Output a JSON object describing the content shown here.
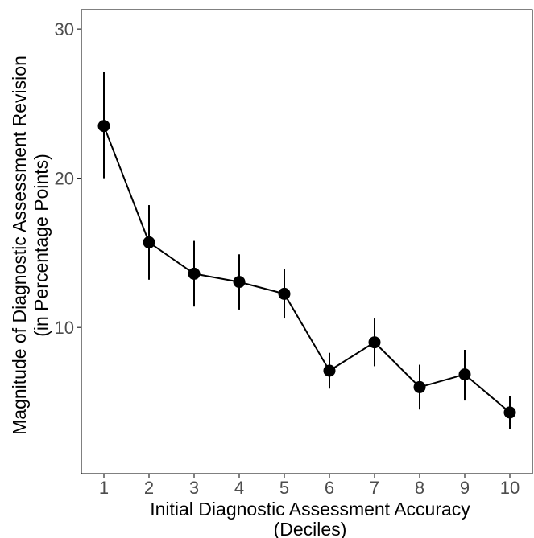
{
  "chart_data": {
    "type": "line",
    "title": "",
    "xlabel": [
      "Initial Diagnostic Assessment Accuracy",
      "(Deciles)"
    ],
    "ylabel": [
      "Magnitude of Diagnostic Assessment Revision",
      "(in Percentage Points)"
    ],
    "x": [
      1,
      2,
      3,
      4,
      5,
      6,
      7,
      8,
      9,
      10
    ],
    "x_tick_labels": [
      "1",
      "2",
      "3",
      "4",
      "5",
      "6",
      "7",
      "8",
      "9",
      "10"
    ],
    "y_ticks": [
      10,
      20,
      30
    ],
    "y_tick_labels": [
      "10",
      "20",
      "30"
    ],
    "xlim": [
      0.5,
      10.5
    ],
    "ylim": [
      0.2,
      31.3
    ],
    "grid": false,
    "series": [
      {
        "values": [
          23.5,
          15.7,
          13.6,
          13.05,
          12.25,
          7.1,
          9.0,
          6.0,
          6.85,
          4.3
        ],
        "error_low": [
          20.0,
          13.2,
          11.4,
          11.2,
          10.6,
          5.9,
          7.4,
          4.5,
          5.1,
          3.2
        ],
        "error_high": [
          27.1,
          18.2,
          15.8,
          14.9,
          13.9,
          8.3,
          10.6,
          7.5,
          8.5,
          5.4
        ]
      }
    ],
    "colors": {
      "line": "#000000",
      "marker": "#000000",
      "axis": "#000000",
      "tick_text": "#4d4d4d"
    }
  }
}
